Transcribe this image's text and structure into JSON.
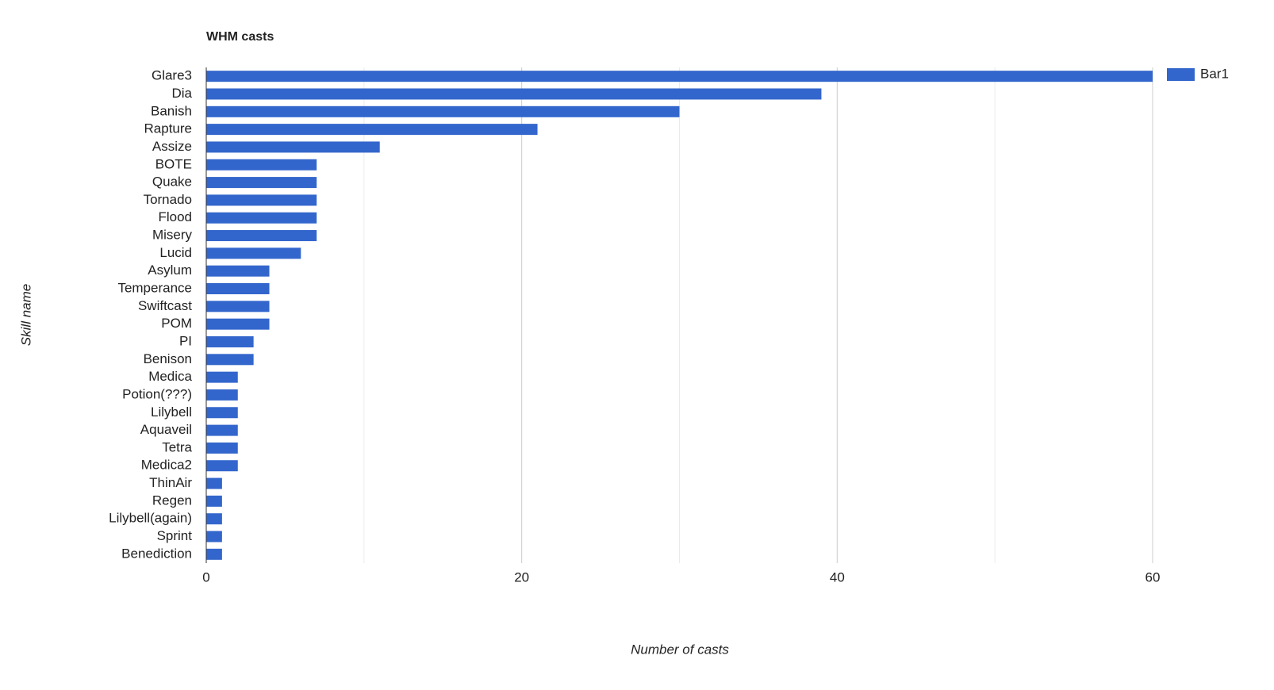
{
  "chart_data": {
    "type": "bar",
    "orientation": "horizontal",
    "title": "WHM casts",
    "x_label": "Number of casts",
    "y_label": "Skill name",
    "categories": [
      "Glare3",
      "Dia",
      "Banish",
      "Rapture",
      "Assize",
      "BOTE",
      "Quake",
      "Tornado",
      "Flood",
      "Misery",
      "Lucid",
      "Asylum",
      "Temperance",
      "Swiftcast",
      "POM",
      "PI",
      "Benison",
      "Medica",
      "Potion(???)",
      "Lilybell",
      "Aquaveil",
      "Tetra",
      "Medica2",
      "ThinAir",
      "Regen",
      "Lilybell(again)",
      "Sprint",
      "Benediction"
    ],
    "series": [
      {
        "name": "Bar1",
        "color": "#3366cc",
        "values": [
          60,
          39,
          30,
          21,
          11,
          7,
          7,
          7,
          7,
          7,
          6,
          4,
          4,
          4,
          4,
          3,
          3,
          2,
          2,
          2,
          2,
          2,
          2,
          1,
          1,
          1,
          1,
          1
        ]
      }
    ],
    "xlim": [
      0,
      60
    ],
    "xticks": [
      0,
      20,
      40,
      60
    ],
    "xminor": [
      10,
      30,
      50
    ],
    "grid": true,
    "legend": "right"
  }
}
